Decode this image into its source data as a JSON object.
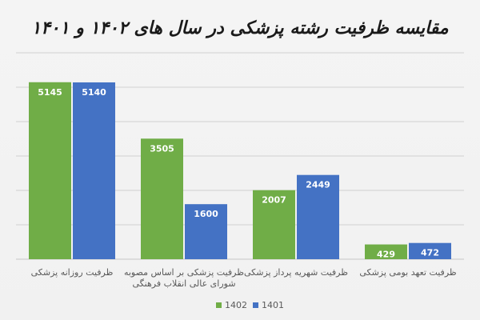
{
  "colors": {
    "series_1402": "#70AD47",
    "series_1401": "#4472C4",
    "grid": "#d0d0d0",
    "background": "#f2f2f2"
  },
  "chart_data": {
    "type": "bar",
    "title": "مقایسه ظرفیت رشته پزشکی در سال های ۱۴۰۲ و ۱۴۰۱",
    "categories": [
      [
        "ظرفیت روزانه پزشکی"
      ],
      [
        "ظرفیت پزشکی بر اساس مصوبه",
        "شورای عالی انقلاب فرهنگی"
      ],
      [
        "ظرفیت شهریه پرداز پزشکی"
      ],
      [
        "ظرفیت تعهد بومی پزشکی"
      ]
    ],
    "series": [
      {
        "name": "1402",
        "values": [
          5145,
          3505,
          2007,
          429
        ]
      },
      {
        "name": "1401",
        "values": [
          5140,
          1600,
          2449,
          472
        ]
      }
    ],
    "ylim": [
      0,
      6000
    ],
    "grid": true,
    "legend_position": "bottom-right",
    "xlabel": "",
    "ylabel": ""
  }
}
